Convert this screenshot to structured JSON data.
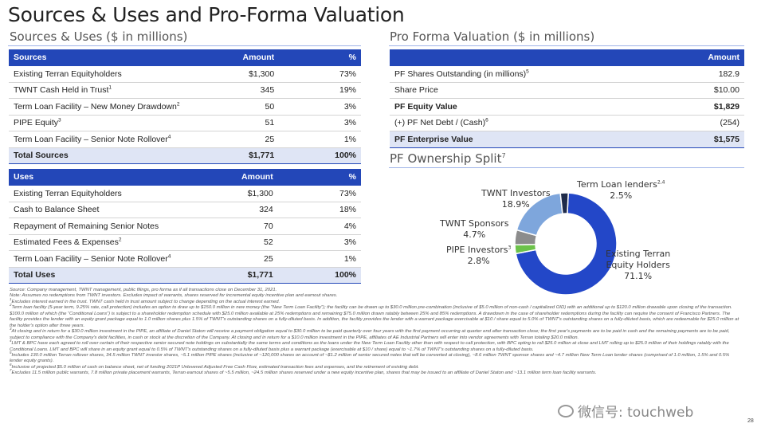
{
  "title": "Sources & Uses and Pro-Forma Valuation",
  "sources_uses_subtitle": "Sources & Uses ($ in millions)",
  "pro_forma_subtitle": "Pro Forma Valuation ($ in millions)",
  "ownership_subtitle": "PF Ownership Split",
  "ownership_subtitle_note": "7",
  "sources": {
    "header": [
      "Sources",
      "Amount",
      "%"
    ],
    "rows": [
      {
        "label": "Existing Terran Equityholders",
        "note": "",
        "amount": "$1,300",
        "pct": "73%"
      },
      {
        "label": "TWNT Cash Held in Trust",
        "note": "1",
        "amount": "345",
        "pct": "19%"
      },
      {
        "label": "Term Loan Facility – New Money Drawdown",
        "note": "2",
        "amount": "50",
        "pct": "3%"
      },
      {
        "label": "PIPE Equity",
        "note": "3",
        "amount": "51",
        "pct": "3%"
      },
      {
        "label": "Term Loan Facility – Senior Note Rollover",
        "note": "4",
        "amount": "25",
        "pct": "1%"
      }
    ],
    "total": {
      "label": "Total Sources",
      "amount": "$1,771",
      "pct": "100%"
    }
  },
  "uses": {
    "header": [
      "Uses",
      "Amount",
      "%"
    ],
    "rows": [
      {
        "label": "Existing Terran Equityholders",
        "note": "",
        "amount": "$1,300",
        "pct": "73%"
      },
      {
        "label": "Cash to Balance Sheet",
        "note": "",
        "amount": "324",
        "pct": "18%"
      },
      {
        "label": "Repayment of Remaining Senior Notes",
        "note": "",
        "amount": "70",
        "pct": "4%"
      },
      {
        "label": "Estimated Fees & Expenses",
        "note": "2",
        "amount": "52",
        "pct": "3%"
      },
      {
        "label": "Term Loan Facility – Senior Note Rollover",
        "note": "4",
        "amount": "25",
        "pct": "1%"
      }
    ],
    "total": {
      "label": "Total Uses",
      "amount": "$1,771",
      "pct": "100%"
    }
  },
  "pro_forma": {
    "header": "Amount",
    "rows": [
      {
        "label": "PF Shares Outstanding (in millions)",
        "note": "5",
        "value": "182.9",
        "style": "plain"
      },
      {
        "label": "Share Price",
        "note": "",
        "value": "$10.00",
        "style": "plain"
      },
      {
        "label": "PF Equity Value",
        "note": "",
        "value": "$1,829",
        "style": "bold"
      },
      {
        "label": "(+) PF Net Debt / (Cash)",
        "note": "6",
        "value": "(254)",
        "style": "plain"
      },
      {
        "label": "PF Enterprise Value",
        "note": "",
        "value": "$1,575",
        "style": "ev"
      }
    ]
  },
  "chart_data": {
    "type": "pie",
    "donut": true,
    "slices": [
      {
        "name": "Existing Terran Equity Holders",
        "value": 71.1,
        "label": "71.1%",
        "color": "#2347c8"
      },
      {
        "name": "PIPE Investors",
        "note": "3",
        "value": 2.8,
        "label": "2.8%",
        "color": "#6cc24a"
      },
      {
        "name": "TWNT Sponsors",
        "value": 4.7,
        "label": "4.7%",
        "color": "#8c8c8c"
      },
      {
        "name": "TWNT Investors",
        "value": 18.9,
        "label": "18.9%",
        "color": "#7ea6dc"
      },
      {
        "name": "Term Loan lenders",
        "note": "2,4",
        "value": 2.5,
        "label": "2.5%",
        "color": "#1f2b4a"
      }
    ]
  },
  "pie_labels": {
    "existing_line1": "Existing Terran",
    "existing_line2": "Equity Holders",
    "existing_pct": "71.1%",
    "pipe_name": "PIPE Investors",
    "pipe_note": "3",
    "pipe_pct": "2.8%",
    "sponsors_name": "TWNT Sponsors",
    "sponsors_pct": "4.7%",
    "investors_name": "TWNT Investors",
    "investors_pct": "18.9%",
    "lenders_name": "Term Loan lenders",
    "lenders_note": "2,4",
    "lenders_pct": "2.5%"
  },
  "footnotes": [
    {
      "num": "",
      "text": "Source: Company management, TWNT management, public filings, pro forma as if all transactions close on December 31, 2021."
    },
    {
      "num": "",
      "text": "Note: Assumes no redemptions from TWNT investors. Excludes impact of warrants, shares reserved for incremental equity incentive plan and earnout shares."
    },
    {
      "num": "1",
      "text": "Excludes interest earned in the trust. TWNT cash held in trust amount subject to change depending on the actual interest earned."
    },
    {
      "num": "2",
      "text": "Term loan facility (5-year term, 9.25% rate, call protection) includes an option to draw up to $150.0 million in new money (the “New Term Loan Facility”); the facility can be drawn up to $30.0 million pre-combination (inclusive of $5.0 million of non-cash / capitalized OID) with an additional up to $120.0 million drawable upon closing of the transaction. $100.0 million of which (the “Conditional Loans”) is subject to a shareholder redemption schedule with $25.0 million available at 25% redemptions and remaining $75.0 million drawn ratably between 25% and 85% redemptions. A drawdown in the case of shareholder redemptions during the facility can require the consent of Francisco Partners. The facility provides the lender with an equity grant package equal to 1.0 million shares plus 1.5% of TWNT's outstanding shares on a fully-diluted basis. In addition, the facility provides the lender with a warrant package exercisable at $10 / share equal to 5.0% of TWNT's outstanding shares on a fully-diluted basis, which are redeemable for $25.0 million at the holder's option after three years."
    },
    {
      "num": "3",
      "text": "At closing and in return for a $30.0 million investment in the PIPE, an affiliate of Daniel Staton will receive a payment obligation equal to $30.0 million to be paid quarterly over four years with the first payment occurring at quarter end after transaction close; the first year's payments are to be paid in cash and the remaining payments are to be paid, subject to compliance with the Company's debt facilities, in cash or stock at the discretion of the Company. At closing and in return for a $10.0 million investment in the PIPE, affiliates of AE Industrial Partners will enter into vendor agreements with Terran totaling $20.0 million."
    },
    {
      "num": "4",
      "text": "LMT & BPC have each agreed to roll over certain of their respective senior secured note holdings on substantially the same terms and conditions as the loans under the New Term Loan Facility other than with respect to call protection, with BPC opting to roll $25.0 million at close and LMT rolling up to $25.0 million of their holdings ratably with the Conditional Loans. LMT and BPC will share in an equity grant equal to 0.5% of TWNT's outstanding shares on a fully-diluted basis plus a warrant package (exercisable at $10 / share) equal to ~1.7% of TWNT's outstanding shares on a fully-diluted basis."
    },
    {
      "num": "5",
      "text": "Includes 130.0 million Terran rollover shares, 34.5 million TWNT investor shares, ~5.1 million PIPE shares (inclusive of ~120,000 shares on account of ~$1.2 million of senior secured notes that will be converted at closing), ~8.6 million TWNT sponsor shares and ~4.7 million New Term Loan lender shares (comprised of 1.0 million, 1.5% and 0.5% lender equity grants)."
    },
    {
      "num": "6",
      "text": "Inclusive of projected $5.0 million of cash on balance sheet, net of funding 2021P Unlevered Adjusted Free Cash Flow, estimated transaction fees and expenses, and the retirement of existing debt."
    },
    {
      "num": "7",
      "text": "Excludes 11.5 million public warrants, 7.8 million private placement warrants, Terran earnout shares of ~5.5 million, ~24.5 million shares reserved under a new equity incentive plan, shares that may be issued to an affiliate of Daniel Staton and ~13.1 million term loan facility warrants."
    }
  ],
  "watermark": "微信号: touchweb",
  "page_number": "28"
}
